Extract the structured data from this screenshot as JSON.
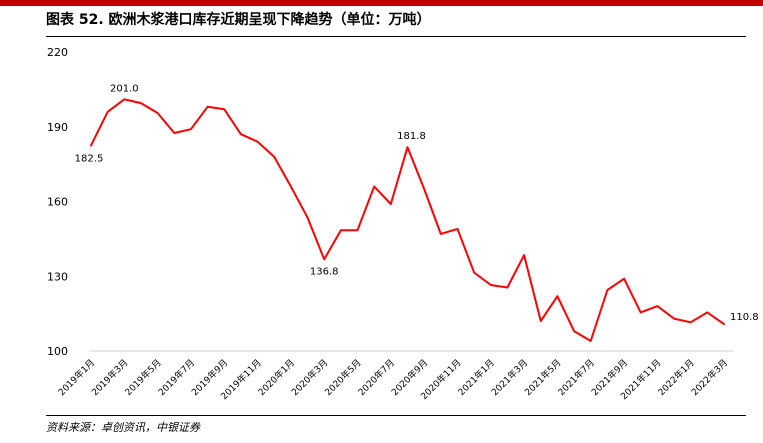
{
  "header": {
    "title": "图表 52. 欧洲木浆港口库存近期呈现下降趋势（单位：万吨）"
  },
  "footer": {
    "source": "资料来源：卓创资讯，中银证券"
  },
  "colors": {
    "accent_bar": "#c00000",
    "series_line": "#ff0000"
  },
  "chart_data": {
    "type": "line",
    "title": "",
    "xlabel": "",
    "ylabel": "",
    "ylim": [
      100,
      220
    ],
    "yticks": [
      100,
      130,
      160,
      190,
      220
    ],
    "grid": false,
    "legend": "none",
    "x": [
      "2019年1月",
      "2019年2月",
      "2019年3月",
      "2019年4月",
      "2019年5月",
      "2019年6月",
      "2019年7月",
      "2019年8月",
      "2019年9月",
      "2019年10月",
      "2019年11月",
      "2019年12月",
      "2020年1月",
      "2020年2月",
      "2020年3月",
      "2020年4月",
      "2020年5月",
      "2020年6月",
      "2020年7月",
      "2020年8月",
      "2020年9月",
      "2020年10月",
      "2020年11月",
      "2020年12月",
      "2021年1月",
      "2021年2月",
      "2021年3月",
      "2021年4月",
      "2021年5月",
      "2021年6月",
      "2021年7月",
      "2021年8月",
      "2021年9月",
      "2021年10月",
      "2021年11月",
      "2021年12月",
      "2022年1月",
      "2022年2月",
      "2022年3月"
    ],
    "xtick_labels": [
      "2019年1月",
      "2019年3月",
      "2019年5月",
      "2019年7月",
      "2019年9月",
      "2019年11月",
      "2020年1月",
      "2020年3月",
      "2020年5月",
      "2020年7月",
      "2020年9月",
      "2020年11月",
      "2021年1月",
      "2021年3月",
      "2021年5月",
      "2021年7月",
      "2021年9月",
      "2021年11月",
      "2022年1月",
      "2022年3月"
    ],
    "series": [
      {
        "values": [
          182.5,
          196.0,
          201.0,
          199.5,
          195.5,
          187.5,
          189.0,
          198.0,
          197.0,
          187.0,
          184.0,
          178.0,
          166.0,
          153.5,
          136.8,
          148.5,
          148.5,
          166.0,
          159.0,
          181.8,
          165.0,
          147.0,
          149.0,
          131.5,
          126.5,
          125.5,
          138.5,
          112.0,
          122.0,
          108.0,
          104.0,
          124.5,
          129.0,
          115.5,
          118.0,
          113.0,
          111.5,
          115.5,
          110.8
        ]
      }
    ],
    "data_labels": [
      {
        "index": 0,
        "text": "182.5"
      },
      {
        "index": 2,
        "text": "201.0"
      },
      {
        "index": 14,
        "text": "136.8"
      },
      {
        "index": 19,
        "text": "181.8"
      },
      {
        "index": 38,
        "text": "110.8"
      }
    ]
  }
}
